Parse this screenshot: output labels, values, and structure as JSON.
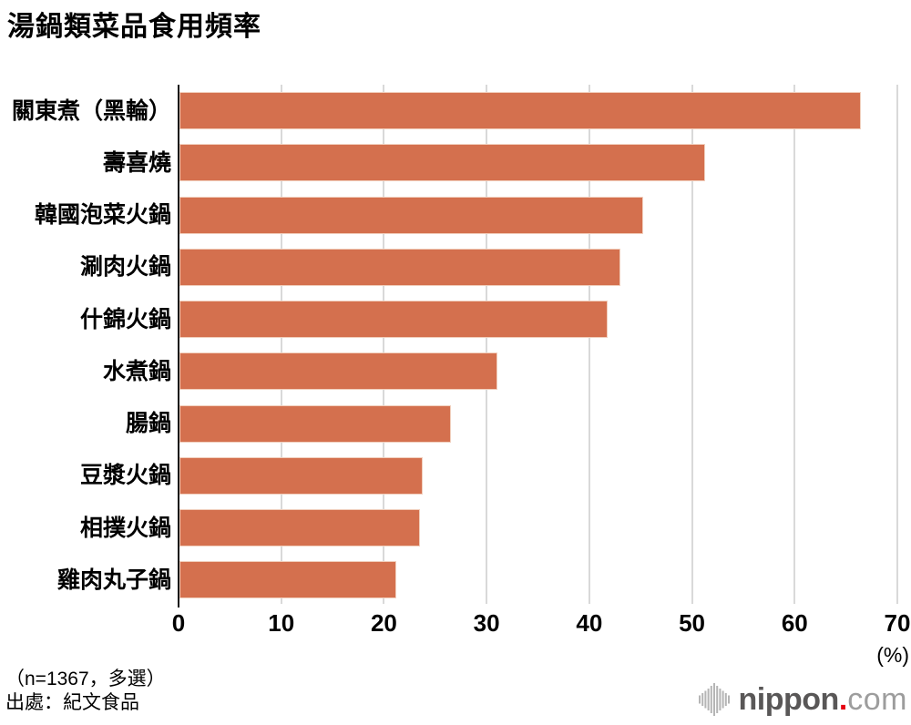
{
  "title": "湯鍋類菜品食用頻率",
  "chart_data": {
    "type": "bar",
    "orientation": "horizontal",
    "title": "湯鍋類菜品食用頻率",
    "categories": [
      "關東煮（黑輪）",
      "壽喜燒",
      "韓國泡菜火鍋",
      "涮肉火鍋",
      "什錦火鍋",
      "水煮鍋",
      "腸鍋",
      "豆漿火鍋",
      "相撲火鍋",
      "雞肉丸子鍋"
    ],
    "values": [
      66.4,
      51.2,
      45.2,
      42.9,
      41.7,
      31.0,
      26.4,
      23.7,
      23.4,
      21.1
    ],
    "xlabel": "(%)",
    "ylabel": "",
    "xlim": [
      0,
      70
    ],
    "xticks": [
      0,
      10,
      20,
      30,
      40,
      50,
      60,
      70
    ],
    "grid": true,
    "legend": false,
    "bar_color": "#d4704e",
    "gridline_color": "#d9d9d9",
    "axis_color": "#141414"
  },
  "footer": {
    "note": "（n=1367，多選）",
    "source": "出處：紀文食品"
  },
  "logo": {
    "icon": "soundwave-bars-icon",
    "name": "nippon",
    "dot": ".",
    "tld": "com",
    "name_color": "#595757",
    "dot_color": "#e60012",
    "tld_color": "#9d9d9d"
  }
}
